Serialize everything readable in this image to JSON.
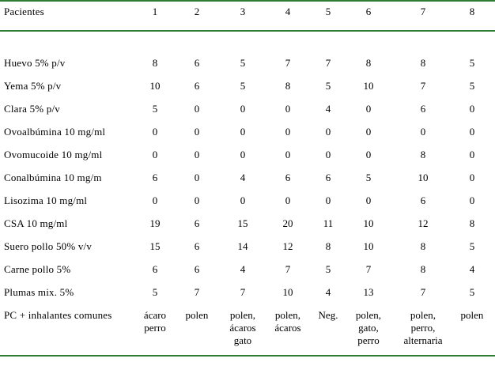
{
  "header": {
    "label": "Pacientes",
    "patients": [
      "1",
      "2",
      "3",
      "4",
      "5",
      "6",
      "7",
      "8"
    ]
  },
  "rows": [
    {
      "label": "Huevo 5% p/v",
      "values": [
        "8",
        "6",
        "5",
        "7",
        "7",
        "8",
        "8",
        "5"
      ]
    },
    {
      "label": "Yema 5% p/v",
      "values": [
        "10",
        "6",
        "5",
        "8",
        "5",
        "10",
        "7",
        "5"
      ]
    },
    {
      "label": "Clara 5% p/v",
      "values": [
        "5",
        "0",
        "0",
        "0",
        "4",
        "0",
        "6",
        "0"
      ]
    },
    {
      "label": "Ovoalbúmina 10 mg/ml",
      "values": [
        "0",
        "0",
        "0",
        "0",
        "0",
        "0",
        "0",
        "0"
      ]
    },
    {
      "label": "Ovomucoide 10 mg/ml",
      "values": [
        "0",
        "0",
        "0",
        "0",
        "0",
        "0",
        "8",
        "0"
      ]
    },
    {
      "label": "Conalbúmina 10 mg/m",
      "values": [
        "6",
        "0",
        "4",
        "6",
        "6",
        "5",
        "10",
        "0"
      ]
    },
    {
      "label": "Lisozima 10 mg/ml",
      "values": [
        "0",
        "0",
        "0",
        "0",
        "0",
        "0",
        "6",
        "0"
      ]
    },
    {
      "label": "CSA 10 mg/ml",
      "values": [
        "19",
        "6",
        "15",
        "20",
        "11",
        "10",
        "12",
        "8"
      ]
    },
    {
      "label": "Suero pollo 50% v/v",
      "values": [
        "15",
        "6",
        "14",
        "12",
        "8",
        "10",
        "8",
        "5"
      ]
    },
    {
      "label": "Carne pollo 5%",
      "values": [
        "6",
        "6",
        "4",
        "7",
        "5",
        "7",
        "8",
        "4"
      ]
    },
    {
      "label": "Plumas mix. 5%",
      "values": [
        "5",
        "7",
        "7",
        "10",
        "4",
        "13",
        "7",
        "5"
      ]
    }
  ],
  "inhalants": {
    "label": "PC + inhalantes comunes",
    "values": [
      [
        "ácaro",
        "perro"
      ],
      [
        "polen"
      ],
      [
        "polen,",
        "ácaros",
        "gato"
      ],
      [
        "polen,",
        "ácaros"
      ],
      [
        "Neg."
      ],
      [
        "polen,",
        "gato,",
        "perro"
      ],
      [
        "polen,",
        "perro,",
        "alternaria"
      ],
      [
        "polen"
      ]
    ]
  }
}
